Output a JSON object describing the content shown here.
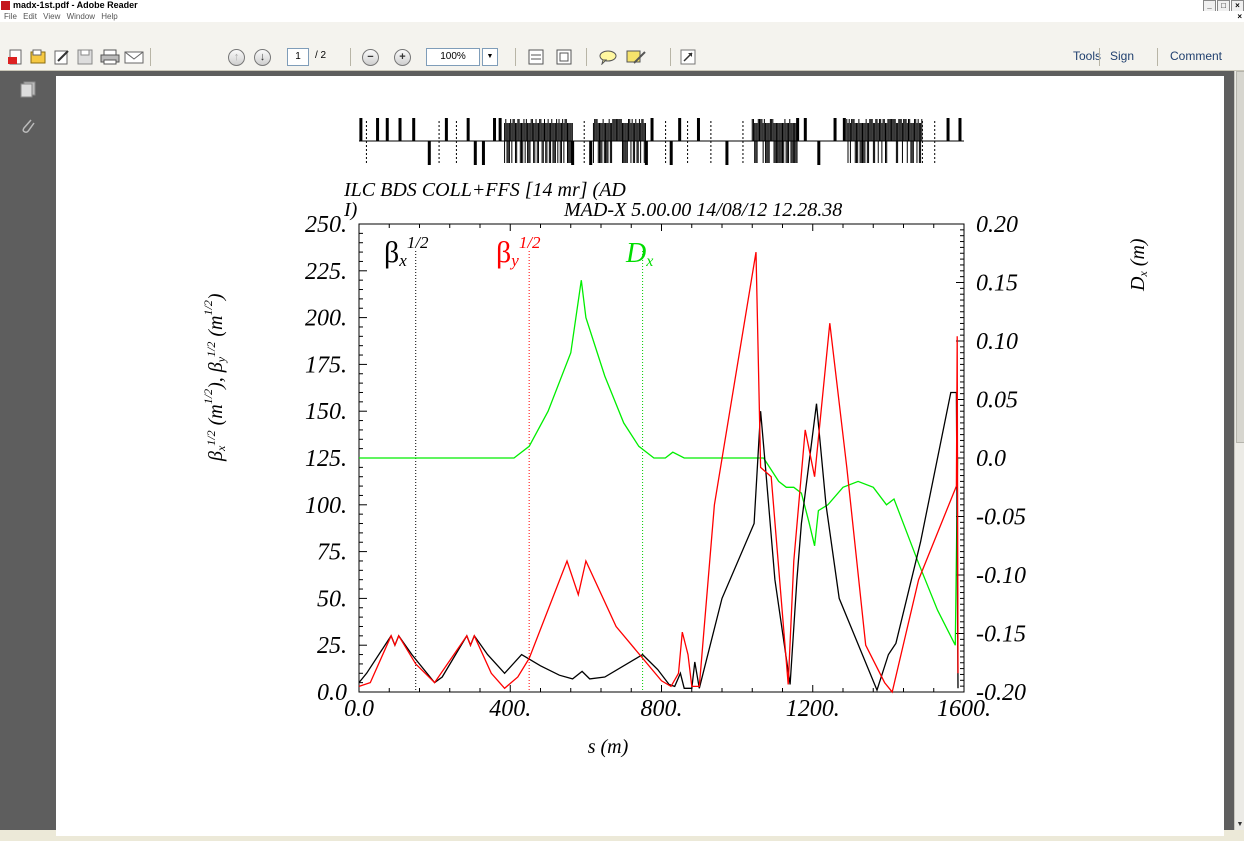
{
  "window": {
    "title": "madx-1st.pdf - Adobe Reader",
    "controls": [
      "_",
      "□",
      "×"
    ]
  },
  "menu": [
    "File",
    "Edit",
    "View",
    "Window",
    "Help"
  ],
  "toolbar": {
    "page_current": "1",
    "page_total": "/ 2",
    "zoom": "100%",
    "tools_label": "Tools",
    "sign_label": "Sign",
    "comment_label": "Comment"
  },
  "chart_data": {
    "type": "line",
    "title_line1": "ILC BDS COLL+FFS [14 mr] (AD",
    "title_line2_left": "I)",
    "title_line2_right": "MAD-X 5.00.00  14/08/12 12.28.38",
    "xlabel": "s (m)",
    "ylabel_left": "βx1/2 (m1/2), βy1/2 (m1/2)",
    "ylabel_right": "Dx (m)",
    "xlim": [
      0,
      1600
    ],
    "ylim_left": [
      0,
      250
    ],
    "ylim_right": [
      -0.2,
      0.2
    ],
    "x_ticks": [
      "0.0",
      "400.",
      "800.",
      "1200.",
      "1600."
    ],
    "x_tick_values": [
      0,
      400,
      800,
      1200,
      1600
    ],
    "y_ticks_left": [
      "0.0",
      "25.",
      "50.",
      "75.",
      "100.",
      "125.",
      "150.",
      "175.",
      "200.",
      "225.",
      "250."
    ],
    "y_ticks_right": [
      "-0.20",
      "-0.15",
      "-0.10",
      "-0.05",
      "0.0",
      "0.05",
      "0.10",
      "0.15",
      "0.20"
    ],
    "y_tick_values_right": [
      -0.2,
      -0.15,
      -0.1,
      -0.05,
      0.0,
      0.05,
      0.1,
      0.15,
      0.2
    ],
    "legend_markers": [
      150,
      450,
      750
    ],
    "series": [
      {
        "name": "βx1/2",
        "color": "#000000",
        "axis": "left",
        "points": [
          [
            0,
            5
          ],
          [
            20,
            10
          ],
          [
            85,
            30
          ],
          [
            95,
            25
          ],
          [
            105,
            30
          ],
          [
            140,
            20
          ],
          [
            200,
            5
          ],
          [
            220,
            8
          ],
          [
            285,
            30
          ],
          [
            295,
            25
          ],
          [
            305,
            30
          ],
          [
            340,
            20
          ],
          [
            385,
            10
          ],
          [
            430,
            20
          ],
          [
            480,
            14
          ],
          [
            530,
            9
          ],
          [
            565,
            7
          ],
          [
            590,
            11
          ],
          [
            610,
            7
          ],
          [
            650,
            8
          ],
          [
            750,
            20
          ],
          [
            790,
            12
          ],
          [
            820,
            4
          ],
          [
            835,
            3
          ],
          [
            850,
            10
          ],
          [
            860,
            2
          ],
          [
            880,
            2
          ],
          [
            888,
            16
          ],
          [
            900,
            2
          ],
          [
            960,
            50
          ],
          [
            1045,
            90
          ],
          [
            1062,
            150
          ],
          [
            1075,
            120
          ],
          [
            1100,
            60
          ],
          [
            1140,
            4
          ],
          [
            1158,
            60
          ],
          [
            1170,
            90
          ],
          [
            1210,
            154
          ],
          [
            1235,
            100
          ],
          [
            1270,
            50
          ],
          [
            1370,
            1
          ],
          [
            1400,
            20
          ],
          [
            1420,
            26
          ],
          [
            1485,
            80
          ],
          [
            1565,
            160
          ],
          [
            1580,
            160
          ],
          [
            1584,
            2
          ]
        ]
      },
      {
        "name": "βy1/2",
        "color": "#ff0000",
        "axis": "left",
        "points": [
          [
            0,
            3
          ],
          [
            30,
            5
          ],
          [
            85,
            30
          ],
          [
            95,
            25
          ],
          [
            105,
            30
          ],
          [
            150,
            15
          ],
          [
            200,
            5
          ],
          [
            285,
            30
          ],
          [
            295,
            25
          ],
          [
            305,
            30
          ],
          [
            350,
            10
          ],
          [
            385,
            2
          ],
          [
            420,
            8
          ],
          [
            450,
            18
          ],
          [
            550,
            70
          ],
          [
            580,
            52
          ],
          [
            600,
            70
          ],
          [
            680,
            35
          ],
          [
            800,
            6
          ],
          [
            825,
            3
          ],
          [
            845,
            10
          ],
          [
            855,
            32
          ],
          [
            870,
            20
          ],
          [
            880,
            3
          ],
          [
            900,
            3
          ],
          [
            940,
            100
          ],
          [
            1050,
            235
          ],
          [
            1062,
            120
          ],
          [
            1090,
            115
          ],
          [
            1135,
            4
          ],
          [
            1150,
            70
          ],
          [
            1180,
            140
          ],
          [
            1205,
            115
          ],
          [
            1245,
            197
          ],
          [
            1290,
            120
          ],
          [
            1340,
            25
          ],
          [
            1390,
            5
          ],
          [
            1410,
            0
          ],
          [
            1480,
            60
          ],
          [
            1580,
            110
          ],
          [
            1582,
            190
          ],
          [
            1584,
            10
          ]
        ]
      },
      {
        "name": "Dx",
        "color": "#00ee00",
        "axis": "right",
        "points": [
          [
            0,
            0.0
          ],
          [
            410,
            0.0
          ],
          [
            450,
            0.01
          ],
          [
            500,
            0.04
          ],
          [
            560,
            0.09
          ],
          [
            588,
            0.152
          ],
          [
            600,
            0.12
          ],
          [
            650,
            0.07
          ],
          [
            700,
            0.03
          ],
          [
            740,
            0.01
          ],
          [
            780,
            0.0
          ],
          [
            810,
            0.0
          ],
          [
            830,
            0.005
          ],
          [
            860,
            0.0
          ],
          [
            1070,
            0.0
          ],
          [
            1110,
            -0.02
          ],
          [
            1130,
            -0.025
          ],
          [
            1150,
            -0.025
          ],
          [
            1170,
            -0.03
          ],
          [
            1190,
            -0.055
          ],
          [
            1205,
            -0.075
          ],
          [
            1215,
            -0.045
          ],
          [
            1240,
            -0.04
          ],
          [
            1280,
            -0.025
          ],
          [
            1320,
            -0.02
          ],
          [
            1360,
            -0.025
          ],
          [
            1395,
            -0.04
          ],
          [
            1415,
            -0.035
          ],
          [
            1480,
            -0.09
          ],
          [
            1530,
            -0.13
          ],
          [
            1577,
            -0.16
          ],
          [
            1583,
            0.0
          ]
        ]
      }
    ]
  }
}
